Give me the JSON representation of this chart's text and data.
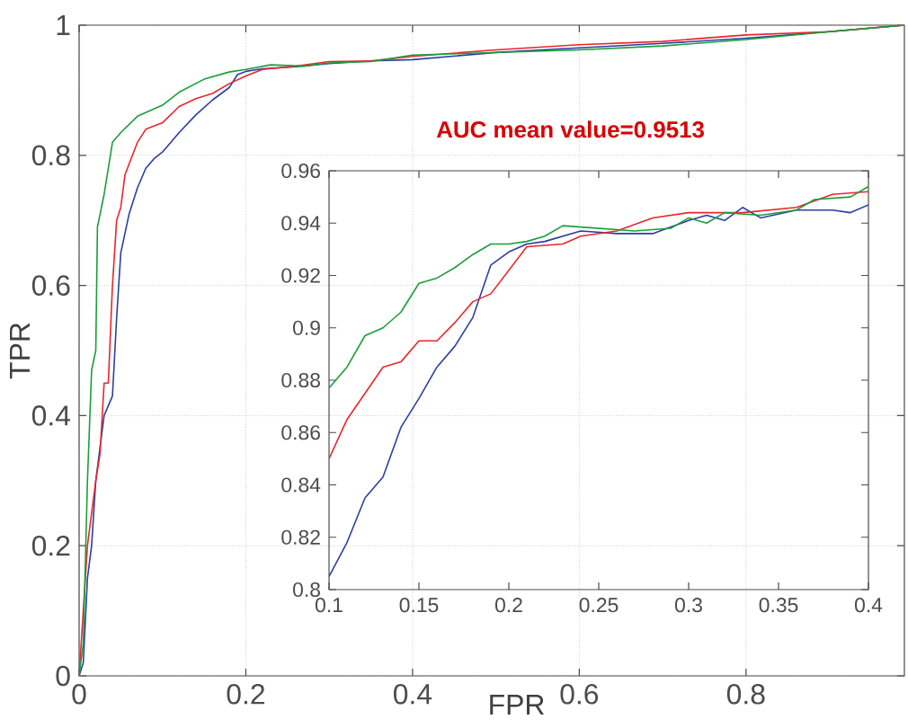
{
  "chart_data": [
    {
      "type": "line",
      "xlabel": "FPR",
      "ylabel": "TPR",
      "xlim": [
        0,
        0.99
      ],
      "ylim": [
        0,
        1
      ],
      "xticks": [
        0,
        0.2,
        0.4,
        0.6,
        0.8
      ],
      "yticks": [
        0,
        0.2,
        0.4,
        0.6,
        0.8,
        1
      ],
      "grid": true,
      "annotations": [
        "AUC mean value=0.9513"
      ],
      "series": [
        {
          "color": "#2a3fa0",
          "x": [
            0,
            0.005,
            0.01,
            0.015,
            0.02,
            0.025,
            0.03,
            0.04,
            0.045,
            0.05,
            0.06,
            0.07,
            0.08,
            0.09,
            0.1,
            0.12,
            0.14,
            0.16,
            0.18,
            0.19,
            0.2,
            0.22,
            0.26,
            0.3,
            0.35,
            0.4,
            0.5,
            0.6,
            0.7,
            0.8,
            0.9,
            0.99
          ],
          "values": [
            0,
            0.02,
            0.15,
            0.2,
            0.3,
            0.35,
            0.4,
            0.43,
            0.55,
            0.65,
            0.71,
            0.75,
            0.78,
            0.795,
            0.805,
            0.835,
            0.862,
            0.885,
            0.904,
            0.924,
            0.929,
            0.933,
            0.936,
            0.941,
            0.945,
            0.947,
            0.958,
            0.965,
            0.972,
            0.98,
            0.99,
            1
          ]
        },
        {
          "color": "#e8262b",
          "x": [
            0,
            0.005,
            0.01,
            0.02,
            0.025,
            0.03,
            0.035,
            0.04,
            0.045,
            0.05,
            0.055,
            0.07,
            0.08,
            0.1,
            0.12,
            0.14,
            0.16,
            0.18,
            0.2,
            0.22,
            0.26,
            0.3,
            0.35,
            0.4,
            0.5,
            0.6,
            0.7,
            0.8,
            0.9,
            0.99
          ],
          "values": [
            0,
            null,
            0.2,
            0.3,
            0.34,
            0.45,
            0.45,
            0.6,
            0.7,
            0.72,
            0.77,
            0.82,
            0.84,
            0.85,
            0.875,
            0.887,
            0.895,
            0.91,
            0.922,
            0.932,
            0.937,
            0.944,
            0.945,
            0.952,
            0.962,
            0.97,
            0.975,
            0.985,
            0.99,
            1
          ]
        },
        {
          "color": "#1a9e3a",
          "x": [
            0,
            0.005,
            0.01,
            0.015,
            0.02,
            0.022,
            0.03,
            0.035,
            0.04,
            0.05,
            0.07,
            0.1,
            0.12,
            0.15,
            0.18,
            0.2,
            0.23,
            0.27,
            0.3,
            0.35,
            0.4,
            0.5,
            0.6,
            0.7,
            0.8,
            0.9,
            0.99
          ],
          "values": [
            0,
            0.05,
            0.3,
            0.47,
            0.5,
            0.69,
            0.74,
            0.78,
            0.82,
            0.835,
            0.86,
            0.877,
            0.897,
            0.917,
            0.928,
            0.932,
            0.939,
            0.937,
            0.942,
            0.944,
            0.954,
            0.958,
            0.962,
            0.968,
            0.978,
            0.99,
            1
          ]
        }
      ]
    },
    {
      "type": "line",
      "xlim": [
        0.1,
        0.4
      ],
      "ylim": [
        0.8,
        0.96
      ],
      "xticks": [
        0.1,
        0.15,
        0.2,
        0.25,
        0.3,
        0.35,
        0.4
      ],
      "yticks": [
        0.8,
        0.82,
        0.84,
        0.86,
        0.88,
        0.9,
        0.92,
        0.94,
        0.96
      ],
      "series": [
        {
          "color": "#2a3fa0",
          "x": [
            0.1,
            0.11,
            0.12,
            0.13,
            0.14,
            0.15,
            0.16,
            0.17,
            0.18,
            0.19,
            0.2,
            0.21,
            0.22,
            0.24,
            0.26,
            0.28,
            0.3,
            0.31,
            0.32,
            0.33,
            0.34,
            0.36,
            0.38,
            0.39,
            0.4
          ],
          "values": [
            0.805,
            0.818,
            0.835,
            0.843,
            0.862,
            0.873,
            0.885,
            0.893,
            0.904,
            0.924,
            0.929,
            0.932,
            0.933,
            0.937,
            0.936,
            0.936,
            0.941,
            0.943,
            0.941,
            0.946,
            0.942,
            0.945,
            0.945,
            0.944,
            0.947
          ]
        },
        {
          "color": "#e8262b",
          "x": [
            0.1,
            0.11,
            0.13,
            0.14,
            0.15,
            0.16,
            0.17,
            0.18,
            0.19,
            0.2,
            0.21,
            0.23,
            0.24,
            0.26,
            0.28,
            0.3,
            0.33,
            0.36,
            0.38,
            0.4
          ],
          "values": [
            0.85,
            0.865,
            0.885,
            0.887,
            0.895,
            0.895,
            0.902,
            0.91,
            0.913,
            0.922,
            0.931,
            0.932,
            0.935,
            0.937,
            0.942,
            0.944,
            0.944,
            0.946,
            0.951,
            0.952
          ]
        },
        {
          "color": "#1a9e3a",
          "x": [
            0.1,
            0.11,
            0.12,
            0.13,
            0.14,
            0.15,
            0.16,
            0.17,
            0.18,
            0.19,
            0.2,
            0.21,
            0.22,
            0.23,
            0.25,
            0.27,
            0.29,
            0.3,
            0.31,
            0.32,
            0.34,
            0.36,
            0.37,
            0.39,
            0.4
          ],
          "values": [
            0.877,
            0.885,
            0.897,
            0.9,
            0.906,
            0.917,
            0.919,
            0.923,
            0.928,
            0.932,
            0.932,
            0.933,
            0.935,
            0.939,
            0.938,
            0.937,
            0.938,
            0.942,
            0.94,
            0.944,
            0.943,
            0.945,
            0.949,
            0.95,
            0.954
          ]
        }
      ]
    }
  ]
}
